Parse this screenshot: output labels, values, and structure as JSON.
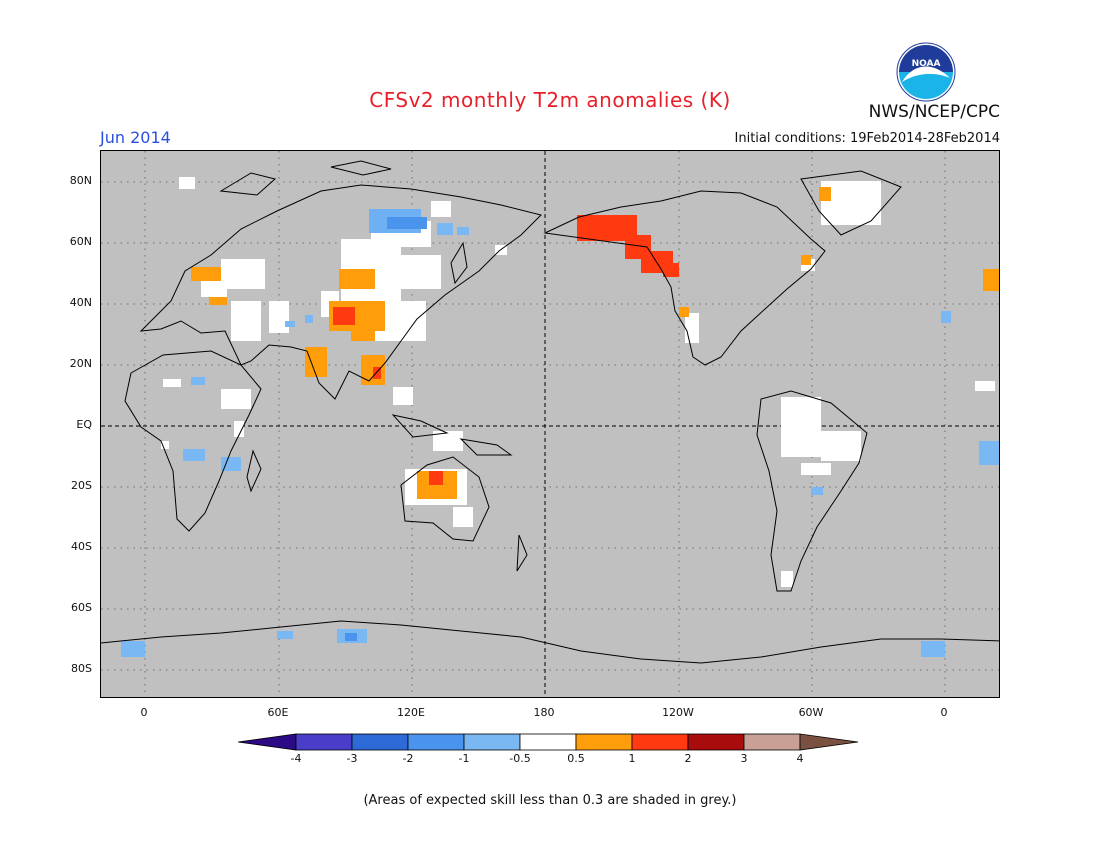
{
  "title": "CFSv2 monthly T2m anomalies (K)",
  "month": "Jun 2014",
  "initial_conditions": "Initial conditions: 19Feb2014-28Feb2014",
  "agency": "NWS/NCEP/CPC",
  "logo_text": "NOAA",
  "footnote": "(Areas of expected skill less than 0.3 are shaded in grey.)",
  "lat_labels": [
    "80N",
    "60N",
    "40N",
    "20N",
    "EQ",
    "20S",
    "40S",
    "60S",
    "80S"
  ],
  "lon_labels": [
    "0",
    "60E",
    "120E",
    "180",
    "120W",
    "60W",
    "0"
  ],
  "colorbar": {
    "labels": [
      "-4",
      "-3",
      "-2",
      "-1",
      "-0.5",
      "0.5",
      "1",
      "2",
      "3",
      "4"
    ],
    "colors": [
      "#2c0a86",
      "#4a3ec9",
      "#2d6ad8",
      "#4b94ee",
      "#7ab8f4",
      "#ffffff",
      "#ff9e0a",
      "#ff3a10",
      "#a80c0c",
      "#c9a095",
      "#7a5040"
    ]
  },
  "colors": {
    "grey_mask": "#c0c0c0",
    "title": "#e8202a",
    "month": "#2a4fe0"
  }
}
